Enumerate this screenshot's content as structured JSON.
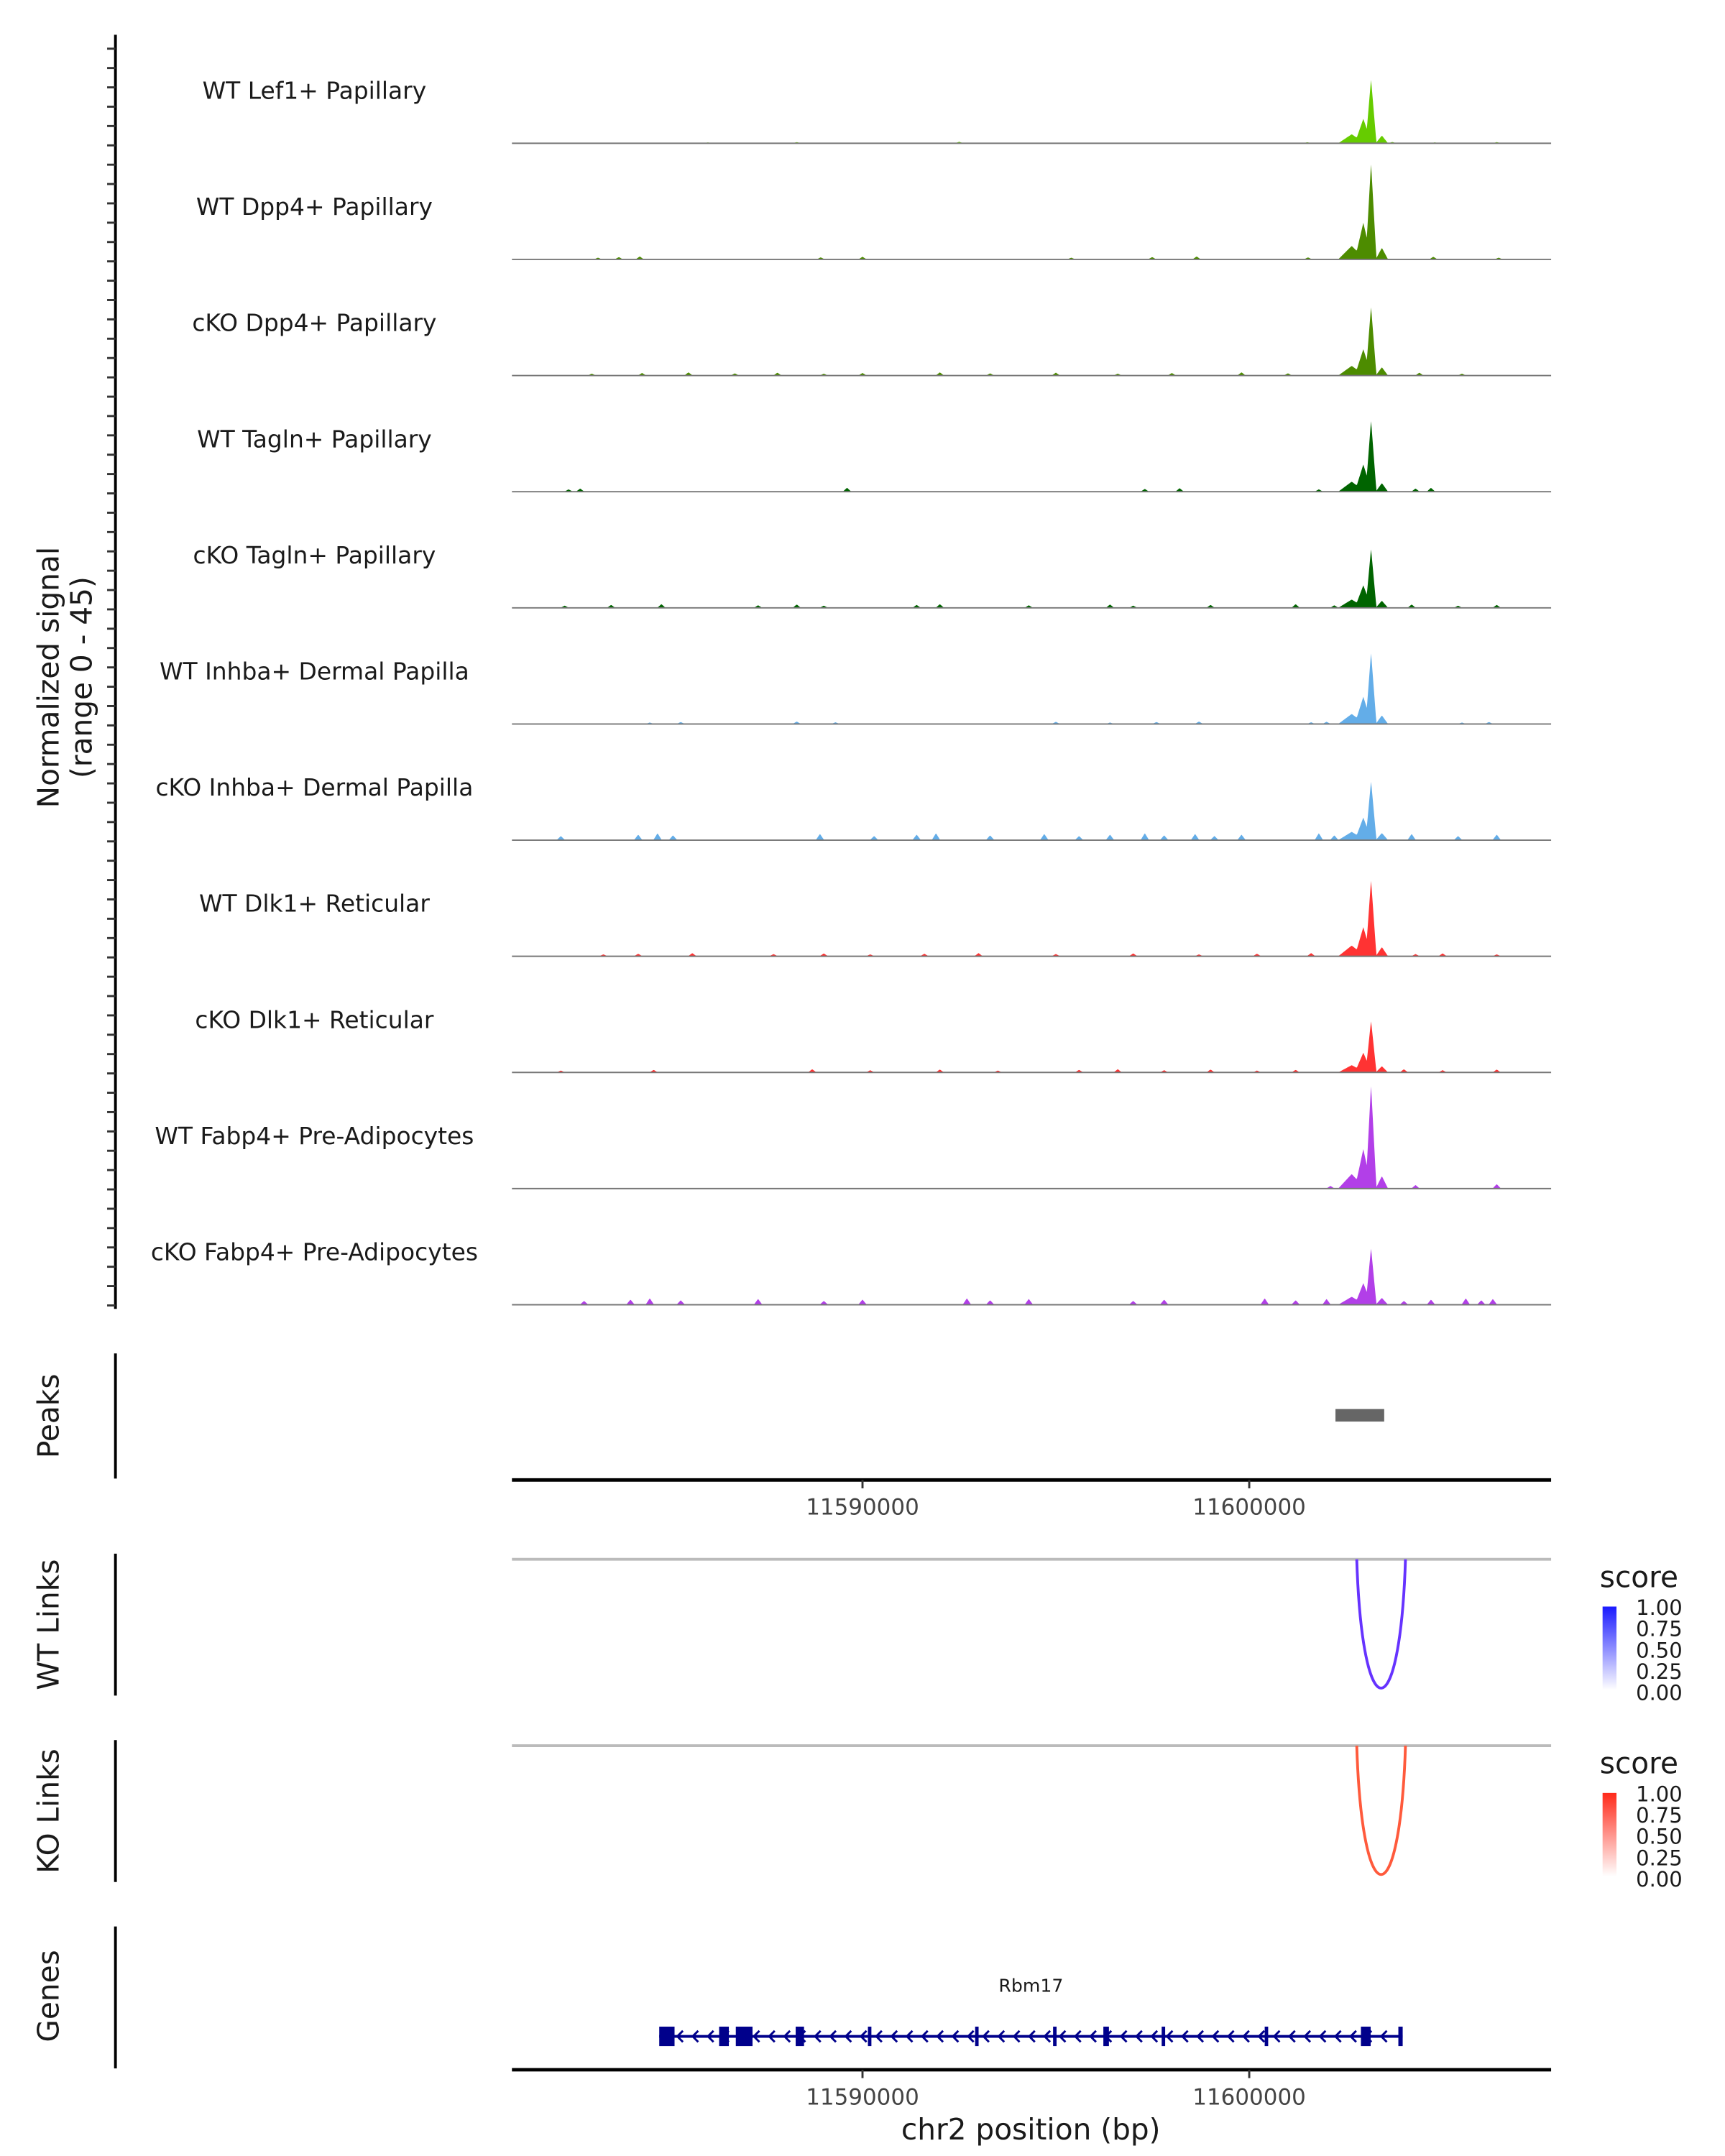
{
  "chart_data": {
    "type": "area",
    "title": "",
    "xlabel": "chr2 position (bp)",
    "ylabel": "Normalized signal\n(range 0 - 45)",
    "ylabel_lines": [
      "Normalized signal",
      "(range 0 - 45)"
    ],
    "xlim": [
      11580935,
      11607806
    ],
    "ylim": [
      0,
      45
    ],
    "x_ticks": [
      11590000,
      11600000
    ],
    "x_tick_labels": [
      "11590000",
      "11600000"
    ],
    "main_peak_bp": 11603150,
    "tracks": [
      {
        "label": "WT Lef1+ Papillary",
        "color": "#66cc00",
        "peak": 26,
        "bg": 0.6,
        "bumps": [
          11586000,
          11588300,
          11592500,
          11601500,
          11603700,
          11604800,
          11606400
        ]
      },
      {
        "label": "WT Dpp4+ Papillary",
        "color": "#4d8c00",
        "peak": 39,
        "bg": 1.2,
        "bumps": [
          11583160,
          11583700,
          11584240,
          11588920,
          11590000,
          11595400,
          11597490,
          11598640,
          11601520,
          11604760,
          11606450
        ]
      },
      {
        "label": "cKO Dpp4+ Papillary",
        "color": "#4d8c00",
        "peak": 28,
        "bg": 1.3,
        "bumps": [
          11583000,
          11584300,
          11585500,
          11586700,
          11587800,
          11589000,
          11590000,
          11592000,
          11593300,
          11595000,
          11596600,
          11598000,
          11599800,
          11601000,
          11604400,
          11605500
        ]
      },
      {
        "label": "WT Tagln+ Papillary",
        "color": "#006400",
        "peak": 29,
        "bg": 1.6,
        "bumps": [
          11582400,
          11582700,
          11589600,
          11597300,
          11598200,
          11601800,
          11604300,
          11604700
        ]
      },
      {
        "label": "cKO Tagln+ Papillary",
        "color": "#006400",
        "peak": 24,
        "bg": 1.5,
        "bumps": [
          11582300,
          11583500,
          11584800,
          11587300,
          11588300,
          11589000,
          11591400,
          11592000,
          11594300,
          11596400,
          11597000,
          11599000,
          11601200,
          11602200,
          11604200,
          11605400,
          11606400
        ]
      },
      {
        "label": "WT Inhba+ Dermal Papilla",
        "color": "#63ade8",
        "peak": 29,
        "bg": 1.0,
        "bumps": [
          11584500,
          11585300,
          11588300,
          11589300,
          11595000,
          11596400,
          11597600,
          11598700,
          11601600,
          11602000,
          11605500,
          11606200
        ]
      },
      {
        "label": "cKO Inhba+ Dermal Papilla",
        "color": "#63ade8",
        "peak": 24,
        "bg": 2.8,
        "bumps": [
          11582200,
          11584200,
          11584700,
          11585100,
          11588900,
          11590300,
          11591400,
          11591900,
          11593300,
          11594700,
          11595600,
          11596400,
          11597300,
          11597800,
          11598600,
          11599100,
          11599800,
          11601800,
          11602200,
          11604200,
          11605400,
          11606400
        ]
      },
      {
        "label": "WT Dlk1+ Reticular",
        "color": "#ff3333",
        "peak": 31,
        "bg": 1.3,
        "bumps": [
          11583300,
          11584200,
          11585600,
          11587700,
          11589000,
          11590200,
          11591600,
          11593000,
          11595000,
          11597000,
          11598700,
          11600200,
          11601600,
          11604300,
          11605000,
          11606400
        ]
      },
      {
        "label": "cKO Dlk1+ Reticular",
        "color": "#ff3333",
        "peak": 21,
        "bg": 1.3,
        "bumps": [
          11582200,
          11584600,
          11588700,
          11590200,
          11592000,
          11593500,
          11595600,
          11596600,
          11597800,
          11599000,
          11600200,
          11601200,
          11604000,
          11605000,
          11606400
        ]
      },
      {
        "label": "WT Fabp4+ Pre-Adipocytes",
        "color": "#b23fe8",
        "peak": 42,
        "bg": 1.8,
        "bumps": [
          11602100,
          11604300,
          11606400
        ]
      },
      {
        "label": "cKO Fabp4+ Pre-Adipocytes",
        "color": "#b23fe8",
        "peak": 23,
        "bg": 2.6,
        "bumps": [
          11582800,
          11584000,
          11584500,
          11585300,
          11587300,
          11589000,
          11590000,
          11592700,
          11593300,
          11594300,
          11597000,
          11597800,
          11600400,
          11601200,
          11602000,
          11604000,
          11604700,
          11605600,
          11606000,
          11606300
        ]
      }
    ],
    "peaks_track": {
      "label": "Peaks",
      "color": "#666666",
      "regions": [
        [
          11602230,
          11603490
        ]
      ]
    },
    "links": [
      {
        "label": "WT Links",
        "start": 11602780,
        "end": 11604040,
        "score": 0.75,
        "color": "#6633ff",
        "legend_high": "#1a1aff",
        "legend_title": "score",
        "legend_ticks": [
          "1.00",
          "0.75",
          "0.50",
          "0.25",
          "0.00"
        ]
      },
      {
        "label": "KO Links",
        "start": 11602780,
        "end": 11604040,
        "score": 0.75,
        "color": "#ff5a3c",
        "legend_high": "#ff2a1a",
        "legend_title": "score",
        "legend_ticks": [
          "1.00",
          "0.75",
          "0.50",
          "0.25",
          "0.00"
        ]
      }
    ],
    "genes": {
      "label": "Genes",
      "color": "#00008b",
      "items": [
        {
          "name": "Rbm17",
          "start": 11584744,
          "end": 11603968,
          "strand": "-",
          "exons": [
            [
              11584744,
              11585140
            ],
            [
              11586292,
              11586544
            ],
            [
              11586724,
              11587156
            ],
            [
              11588272,
              11588488
            ],
            [
              11590140,
              11590220
            ],
            [
              11592912,
              11592992
            ],
            [
              11594928,
              11595008
            ],
            [
              11596228,
              11596372
            ],
            [
              11597736,
              11597816
            ],
            [
              11600400,
              11600480
            ],
            [
              11602888,
              11603140
            ],
            [
              11603856,
              11603968
            ]
          ]
        }
      ]
    }
  }
}
